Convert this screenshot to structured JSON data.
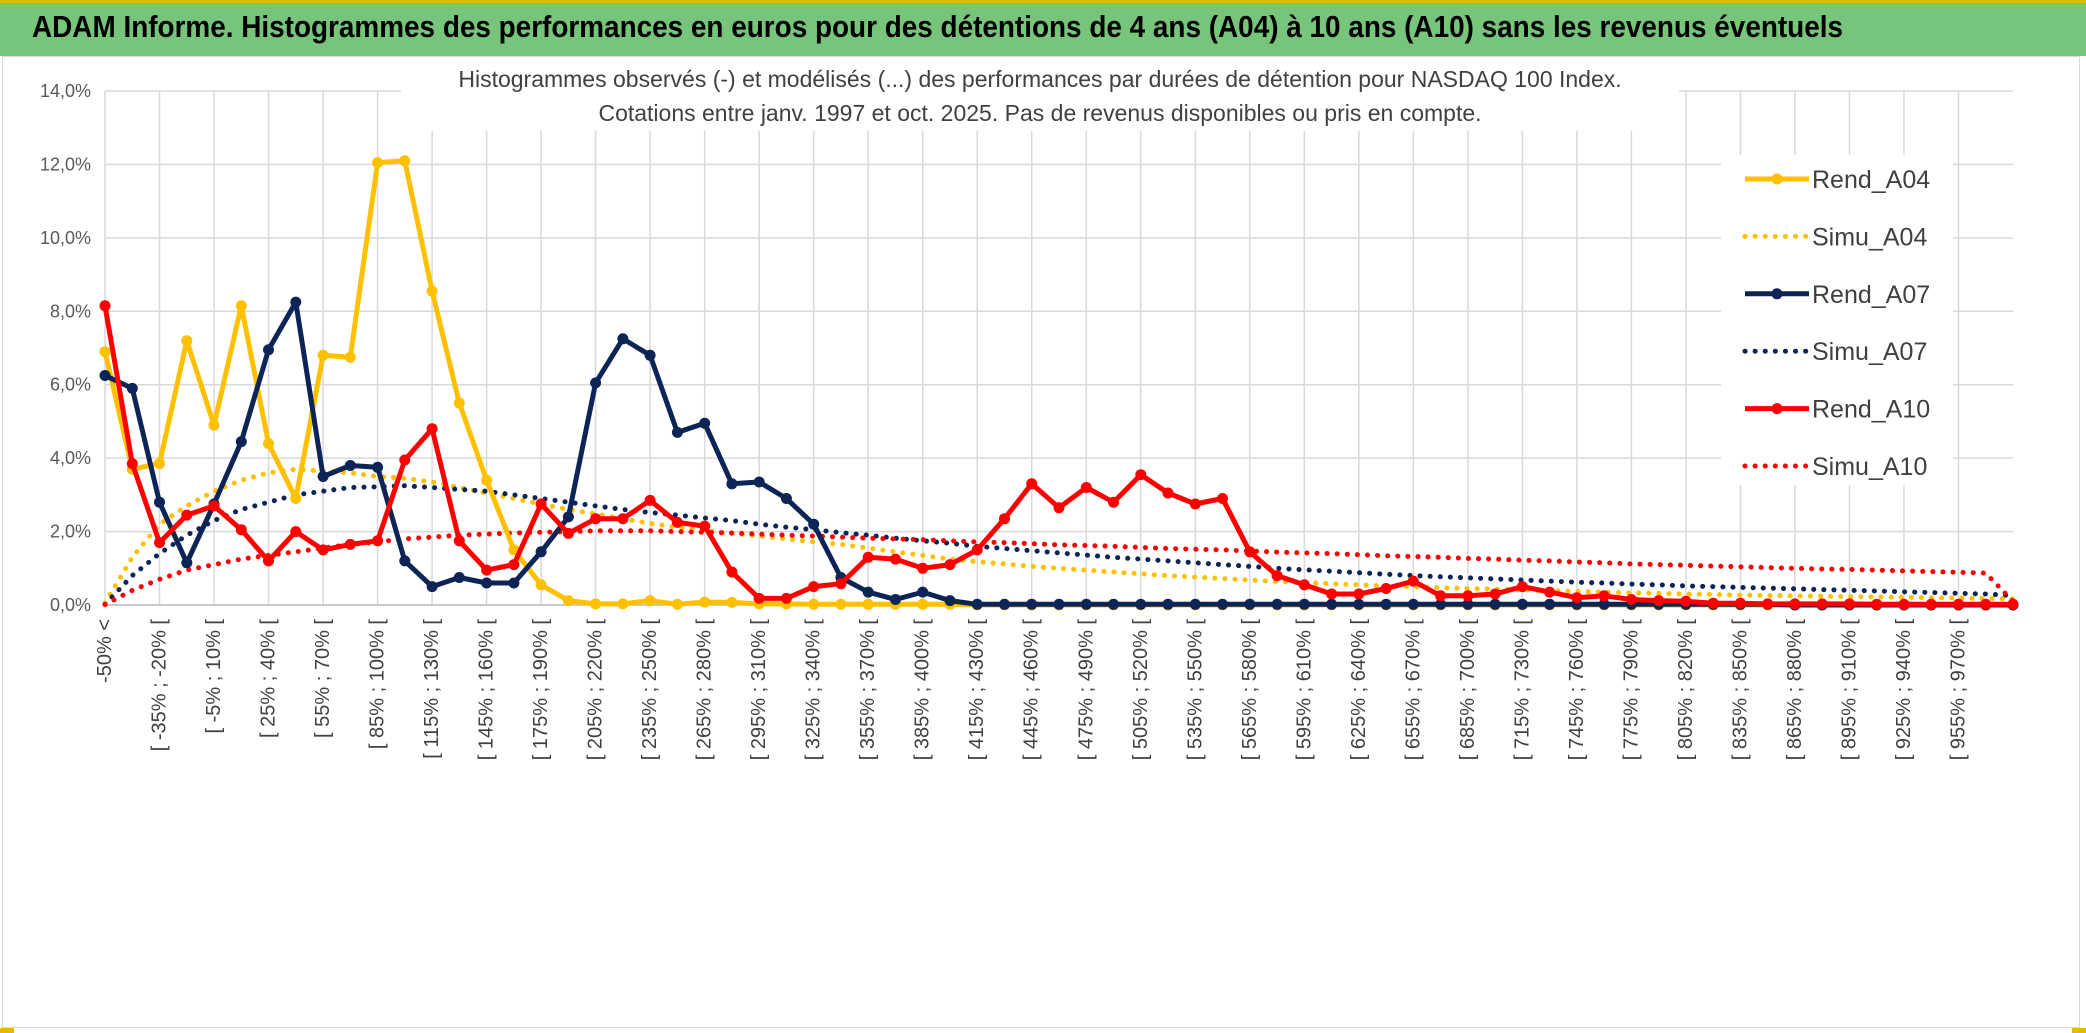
{
  "title_bar": {
    "text": "ADAM Informe. Histogrammes des performances en euros pour des détentions de 4 ans (A04) à 10 ans (A10) sans les revenus éventuels"
  },
  "chart_data": {
    "type": "line",
    "title_line1": "Histogrammes observés (-) et modélisés (...) des performances par durées de détention pour NASDAQ 100 Index.",
    "title_line2": "Cotations entre janv. 1997 et oct. 2025. Pas de revenus disponibles ou pris en compte.",
    "ylim": [
      0,
      14
    ],
    "yticks": [
      "0,0%",
      "2,0%",
      "4,0%",
      "6,0%",
      "8,0%",
      "10,0%",
      "12,0%",
      "14,0%"
    ],
    "xlabels": [
      "-50% <",
      "[ -35% ; -20% [",
      "[ -5% ; 10% [",
      "[ 25% ; 40% [",
      "[ 55% ; 70% [",
      "[ 85% ; 100% [",
      "[ 115% ; 130% [",
      "[ 145% ; 160% [",
      "[ 175% ; 190% [",
      "[ 205% ; 220% [",
      "[ 235% ; 250% [",
      "[ 265% ; 280% [",
      "[ 295% ; 310% [",
      "[ 325% ; 340% [",
      "[ 355% ; 370% [",
      "[ 385% ; 400% [",
      "[ 415% ; 430% [",
      "[ 445% ; 460% [",
      "[ 475% ; 490% [",
      "[ 505% ; 520% [",
      "[ 535% ; 550% [",
      "[ 565% ; 580% [",
      "[ 595% ; 610% [",
      "[ 625% ; 640% [",
      "[ 655% ; 670% [",
      "[ 685% ; 700% [",
      "[ 715% ; 730% [",
      "[ 745% ; 760% [",
      "[ 775% ; 790% [",
      "[ 805% ; 820% [",
      "[ 835% ; 850% [",
      "[ 865% ; 880% [",
      "[ 895% ; 910% [",
      "[ 925% ; 940% [",
      "[ 955% ; 970% ["
    ],
    "series": [
      {
        "name": "Rend_A04",
        "color": "#FFC000",
        "style": "solid",
        "values": [
          6.9,
          3.7,
          3.85,
          7.2,
          4.9,
          8.15,
          4.4,
          2.9,
          6.8,
          6.75,
          12.05,
          12.1,
          8.55,
          5.5,
          3.4,
          1.5,
          0.55,
          0.12,
          0.03,
          0.03,
          0.12,
          0.02,
          0.08,
          0.07,
          0.03,
          0.03,
          0.02,
          0.02,
          0.02,
          0.02,
          0.02,
          0.02,
          0,
          0,
          0,
          0,
          0,
          0,
          0,
          0,
          0,
          0,
          0,
          0,
          0,
          0,
          0,
          0,
          0,
          0,
          0,
          0,
          0,
          0,
          0,
          0,
          0,
          0,
          0,
          0,
          0,
          0,
          0,
          0,
          0,
          0,
          0,
          0,
          0,
          0,
          0
        ]
      },
      {
        "name": "Simu_A04",
        "color": "#FFC000",
        "style": "dotted",
        "values": [
          0.05,
          1.3,
          2.2,
          2.7,
          3.1,
          3.4,
          3.6,
          3.7,
          3.65,
          3.6,
          3.5,
          3.45,
          3.35,
          3.2,
          3.05,
          2.9,
          2.75,
          2.6,
          2.48,
          2.35,
          2.22,
          2.12,
          2.02,
          1.95,
          1.88,
          1.8,
          1.72,
          1.65,
          1.55,
          1.45,
          1.35,
          1.25,
          1.18,
          1.12,
          1.05,
          1.0,
          0.95,
          0.9,
          0.85,
          0.8,
          0.76,
          0.72,
          0.68,
          0.64,
          0.61,
          0.58,
          0.55,
          0.52,
          0.5,
          0.47,
          0.45,
          0.43,
          0.41,
          0.39,
          0.37,
          0.35,
          0.33,
          0.32,
          0.3,
          0.29,
          0.27,
          0.26,
          0.25,
          0.24,
          0.23,
          0.22,
          0.21,
          0.2,
          0.19,
          0.18,
          0.17
        ]
      },
      {
        "name": "Rend_A07",
        "color": "#0D2456",
        "style": "solid",
        "values": [
          6.25,
          5.9,
          2.8,
          1.15,
          2.75,
          4.45,
          6.95,
          8.25,
          3.5,
          3.8,
          3.75,
          1.2,
          0.5,
          0.75,
          0.6,
          0.6,
          1.45,
          2.4,
          6.05,
          7.25,
          6.8,
          4.7,
          4.95,
          3.3,
          3.35,
          2.9,
          2.2,
          0.75,
          0.35,
          0.15,
          0.35,
          0.12,
          0.02,
          0.02,
          0.02,
          0.02,
          0.02,
          0.02,
          0.02,
          0.02,
          0.02,
          0.02,
          0.02,
          0.02,
          0.02,
          0.02,
          0.02,
          0.02,
          0.02,
          0.02,
          0.02,
          0.02,
          0.02,
          0.02,
          0.02,
          0.02,
          0.02,
          0.02,
          0.02,
          0.02,
          0.02,
          0.02,
          0,
          0,
          0,
          0,
          0,
          0,
          0,
          0,
          0
        ]
      },
      {
        "name": "Simu_A07",
        "color": "#0D2456",
        "style": "dotted",
        "values": [
          0.02,
          0.8,
          1.4,
          1.9,
          2.3,
          2.6,
          2.8,
          3.0,
          3.1,
          3.2,
          3.22,
          3.25,
          3.2,
          3.15,
          3.1,
          3.0,
          2.9,
          2.8,
          2.7,
          2.6,
          2.52,
          2.45,
          2.37,
          2.3,
          2.2,
          2.12,
          2.05,
          1.97,
          1.9,
          1.82,
          1.75,
          1.68,
          1.6,
          1.54,
          1.48,
          1.42,
          1.36,
          1.3,
          1.25,
          1.2,
          1.15,
          1.1,
          1.05,
          1.0,
          0.96,
          0.92,
          0.88,
          0.84,
          0.8,
          0.77,
          0.74,
          0.71,
          0.68,
          0.65,
          0.62,
          0.6,
          0.57,
          0.55,
          0.52,
          0.5,
          0.48,
          0.46,
          0.44,
          0.42,
          0.4,
          0.38,
          0.36,
          0.34,
          0.32,
          0.3,
          0.26
        ]
      },
      {
        "name": "Rend_A10",
        "color": "#FF0000",
        "style": "solid",
        "values": [
          8.15,
          3.85,
          1.7,
          2.45,
          2.7,
          2.05,
          1.2,
          2.0,
          1.5,
          1.65,
          1.75,
          3.95,
          4.8,
          1.75,
          0.95,
          1.1,
          2.75,
          1.95,
          2.35,
          2.35,
          2.85,
          2.25,
          2.15,
          0.9,
          0.18,
          0.18,
          0.5,
          0.58,
          1.3,
          1.25,
          1.0,
          1.1,
          1.5,
          2.35,
          3.3,
          2.65,
          3.2,
          2.8,
          3.55,
          3.05,
          2.75,
          2.9,
          1.45,
          0.8,
          0.55,
          0.3,
          0.3,
          0.45,
          0.65,
          0.25,
          0.25,
          0.3,
          0.5,
          0.35,
          0.2,
          0.25,
          0.15,
          0.12,
          0.1,
          0.05,
          0.05,
          0.03,
          0.03,
          0.03,
          0.03,
          0.02,
          0.02,
          0.02,
          0.02,
          0.02,
          0.02
        ]
      },
      {
        "name": "Simu_A10",
        "color": "#FF0000",
        "style": "dotted",
        "values": [
          0.01,
          0.4,
          0.7,
          0.95,
          1.1,
          1.25,
          1.35,
          1.45,
          1.55,
          1.65,
          1.72,
          1.8,
          1.85,
          1.9,
          1.93,
          1.96,
          1.98,
          2.0,
          2.02,
          2.02,
          2.02,
          2.0,
          1.98,
          1.96,
          1.93,
          1.9,
          1.88,
          1.85,
          1.82,
          1.8,
          1.78,
          1.75,
          1.72,
          1.7,
          1.67,
          1.64,
          1.62,
          1.6,
          1.57,
          1.54,
          1.52,
          1.5,
          1.47,
          1.44,
          1.42,
          1.4,
          1.37,
          1.34,
          1.32,
          1.3,
          1.27,
          1.25,
          1.22,
          1.2,
          1.17,
          1.15,
          1.12,
          1.1,
          1.08,
          1.06,
          1.04,
          1.02,
          1.0,
          0.98,
          0.97,
          0.95,
          0.93,
          0.91,
          0.89,
          0.87,
          0.1
        ]
      }
    ],
    "legend_position": "right"
  }
}
